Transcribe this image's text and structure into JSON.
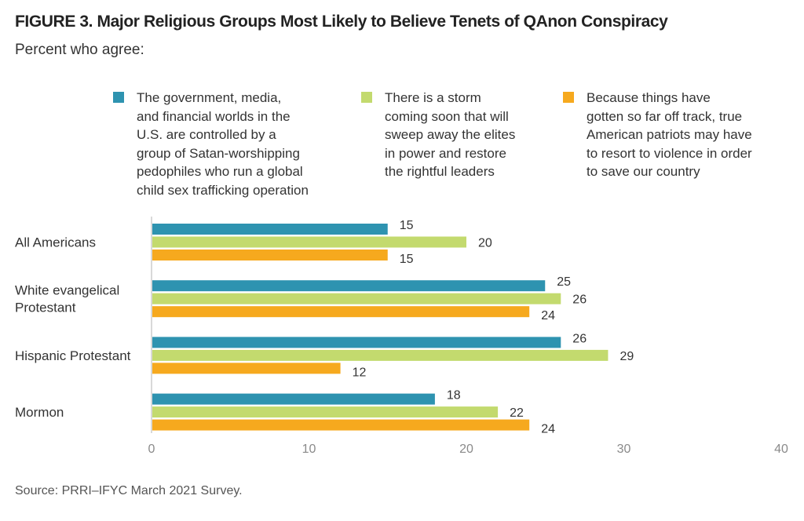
{
  "figure": {
    "title": "FIGURE 3.  Major Religious Groups Most Likely to Believe Tenets of QAnon Conspiracy",
    "subtitle": "Percent who agree:",
    "source": "Source: PRRI–IFYC March 2021 Survey."
  },
  "colors": {
    "series_1": "#2E93B0",
    "series_2": "#C3DA6E",
    "series_3": "#F6A91E",
    "axis": "#d9d9d9"
  },
  "chart_data": {
    "type": "bar",
    "orientation": "horizontal",
    "title": "FIGURE 3.  Major Religious Groups Most Likely to Believe Tenets of QAnon Conspiracy",
    "subtitle": "Percent who agree:",
    "xlabel": "",
    "ylabel": "",
    "xlim": [
      0,
      40
    ],
    "xticks": [
      0,
      10,
      20,
      30,
      40
    ],
    "grid": false,
    "legend_position": "top",
    "categories": [
      "All Americans",
      "White evangelical\nProtestant",
      "Hispanic Protestant",
      "Mormon"
    ],
    "series": [
      {
        "name": "The government, media,\nand financial worlds in the\nU.S. are controlled by a\ngroup of Satan-worshipping\npedophiles who run a global\nchild sex trafficking operation",
        "color": "#2E93B0",
        "values": [
          15,
          25,
          26,
          18
        ]
      },
      {
        "name": "There is a storm\ncoming soon that will\nsweep away the elites\nin power and restore\nthe rightful leaders",
        "color": "#C3DA6E",
        "values": [
          20,
          26,
          29,
          22
        ]
      },
      {
        "name": "Because things have\ngotten so far off track, true\nAmerican patriots may have\nto resort to violence in order\nto save our country",
        "color": "#F6A91E",
        "values": [
          15,
          24,
          12,
          24
        ]
      }
    ],
    "source": "Source: PRRI–IFYC March 2021 Survey."
  }
}
